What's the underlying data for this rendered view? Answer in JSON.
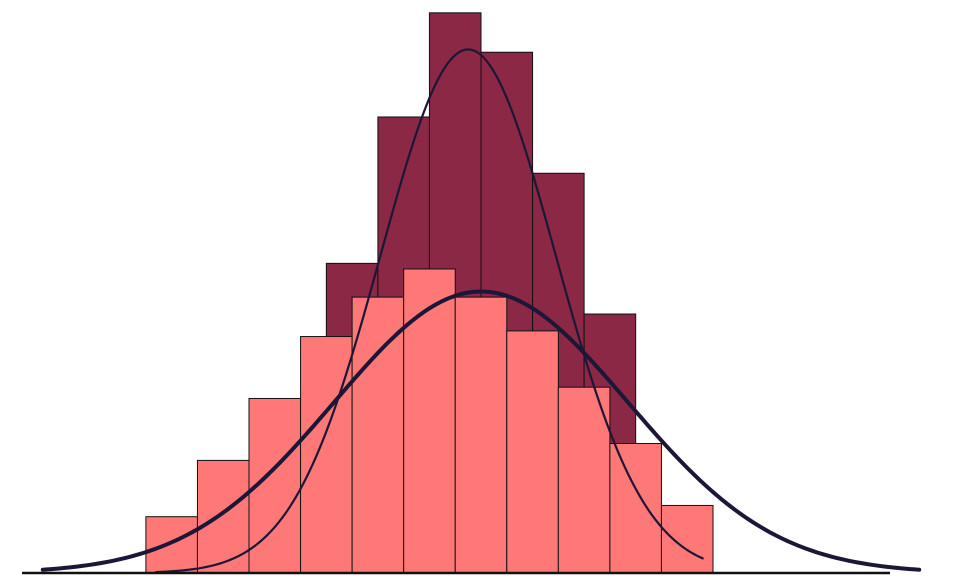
{
  "chart_data": {
    "type": "bar",
    "title": "",
    "xlabel": "",
    "ylabel": "",
    "grid": false,
    "legend": "none",
    "xlim": [
      -2,
      16
    ],
    "ylim": [
      0,
      10
    ],
    "series": [
      {
        "kind": "histogram",
        "color": "#8a2846",
        "bins": [
          {
            "x0": 4,
            "x1": 5,
            "value": 5.5
          },
          {
            "x0": 5,
            "x1": 6,
            "value": 8.1
          },
          {
            "x0": 6,
            "x1": 7,
            "value": 9.95
          },
          {
            "x0": 7,
            "x1": 8,
            "value": 9.25
          },
          {
            "x0": 8,
            "x1": 9,
            "value": 7.1
          },
          {
            "x0": 9,
            "x1": 10,
            "value": 4.6
          }
        ]
      },
      {
        "kind": "histogram",
        "color": "#ff7878",
        "bins": [
          {
            "x0": 0.5,
            "x1": 1.5,
            "value": 1.0
          },
          {
            "x0": 1.5,
            "x1": 2.5,
            "value": 2.0
          },
          {
            "x0": 2.5,
            "x1": 3.5,
            "value": 3.1
          },
          {
            "x0": 3.5,
            "x1": 4.5,
            "value": 4.2
          },
          {
            "x0": 4.5,
            "x1": 5.5,
            "value": 4.9
          },
          {
            "x0": 5.5,
            "x1": 6.5,
            "value": 5.4
          },
          {
            "x0": 6.5,
            "x1": 7.5,
            "value": 4.9
          },
          {
            "x0": 7.5,
            "x1": 8.5,
            "value": 4.3
          },
          {
            "x0": 8.5,
            "x1": 9.5,
            "value": 3.3
          },
          {
            "x0": 9.5,
            "x1": 10.5,
            "value": 2.3
          },
          {
            "x0": 10.5,
            "x1": 11.5,
            "value": 1.2
          }
        ]
      },
      {
        "kind": "normal_curve",
        "color": "#1c1736",
        "weight": "thin",
        "mean": 6.75,
        "sd": 1.7,
        "peak": 9.3,
        "x_range": [
          0.7,
          11.3
        ]
      },
      {
        "kind": "normal_curve",
        "color": "#1c1736",
        "weight": "thick",
        "mean": 7.0,
        "sd": 2.85,
        "peak": 5.0,
        "x_range": [
          -1.5,
          15.5
        ]
      }
    ]
  }
}
